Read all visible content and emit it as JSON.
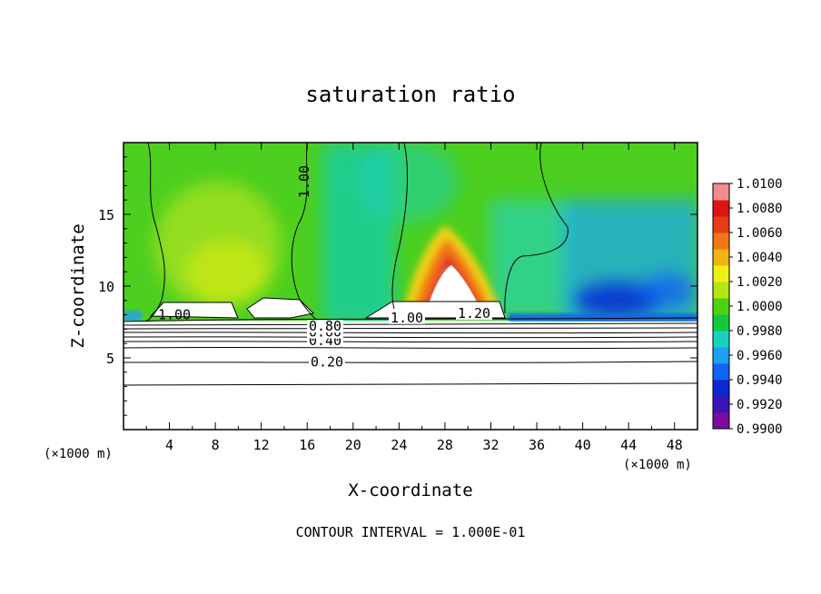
{
  "chart_data": {
    "type": "heatmap",
    "title": "saturation ratio",
    "xlabel": "X-coordinate",
    "ylabel": "Z-coordinate",
    "x_unit": "(×1000 m)",
    "z_unit": "(×1000 m)",
    "xlim": [
      0,
      50
    ],
    "ylim": [
      0,
      20
    ],
    "x_ticks": [
      "4",
      "8",
      "12",
      "16",
      "20",
      "24",
      "28",
      "32",
      "36",
      "40",
      "44",
      "48"
    ],
    "y_ticks": [
      "5",
      "10",
      "15"
    ],
    "footer": "CONTOUR INTERVAL = 1.000E-01",
    "colorbar": {
      "min": 0.99,
      "max": 1.01,
      "labels": [
        "1.0100",
        "1.0080",
        "1.0060",
        "1.0040",
        "1.0020",
        "1.0000",
        "0.9980",
        "0.9960",
        "0.9940",
        "0.9920",
        "0.9900"
      ],
      "colors": [
        "#7a0ca0",
        "#3a14b4",
        "#0c28d2",
        "#1264ee",
        "#1ea0f0",
        "#18d2c0",
        "#14c83c",
        "#50d214",
        "#b4e614",
        "#f0f014",
        "#f0b414",
        "#f07814",
        "#e83c14",
        "#dc1414",
        "#f08c8c"
      ]
    },
    "contours": [
      {
        "label": "0.20",
        "z": 4.7
      },
      {
        "label": "0.40",
        "z": 6.2
      },
      {
        "label": "0.60",
        "z": 6.8
      },
      {
        "label": "0.80",
        "z": 7.2
      },
      {
        "label": "1.00",
        "z": 8.0
      },
      {
        "label": "1.00",
        "z": 18.0
      },
      {
        "label": "1.00",
        "z": 7.8
      },
      {
        "label": "1.20",
        "z": 8.1
      }
    ]
  }
}
